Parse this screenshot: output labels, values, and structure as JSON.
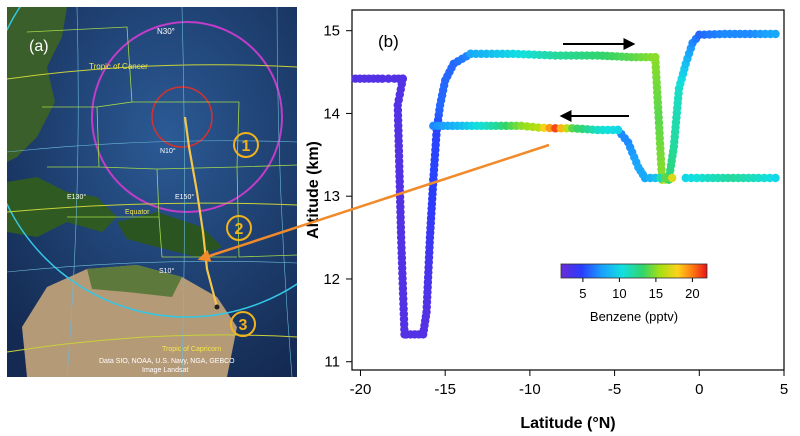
{
  "map": {
    "panel_label": "(a)",
    "labels": {
      "n30": "N30°",
      "tropic_cancer": "Tropic of Cancer",
      "n10": "N10°",
      "e130": "E130°",
      "e150": "E150°",
      "equator": "Equator",
      "s10": "S10°",
      "tropic_capricorn": "Tropic of Capricorn",
      "attribution_line1": "Data SIO, NOAA, U.S. Navy, NGA, GEBCO",
      "attribution_line2": "Image Landsat"
    },
    "markers": [
      "1",
      "2",
      "3"
    ],
    "colors": {
      "ocean": "#1f3f73",
      "land": "#2f5a22",
      "desert": "#b59a78",
      "marker": "#f2b21b",
      "circle_outer": "#32c8e6",
      "circle_mid": "#c13cc8",
      "circle_inner": "#d9302c",
      "track": "#f5c64a"
    }
  },
  "chart_data": {
    "type": "scatter",
    "panel_label": "(b)",
    "xlabel": "Latitude (°N)",
    "ylabel": "Altitude (km)",
    "xlim": [
      -20.5,
      5.0
    ],
    "ylim": [
      10.9,
      15.25
    ],
    "xticks": [
      -20,
      -15,
      -10,
      -5,
      0,
      5
    ],
    "yticks": [
      11,
      12,
      13,
      14,
      15
    ],
    "colorbar": {
      "label": "Benzene (pptv)",
      "range": [
        2,
        22
      ],
      "ticks": [
        5,
        10,
        15,
        20
      ]
    },
    "segments": [
      {
        "x": [
          -20.3,
          -19.5,
          -18.7,
          -18.0,
          -17.5
        ],
        "y": [
          14.42,
          14.42,
          14.42,
          14.42,
          14.42
        ],
        "c": [
          3,
          3,
          3,
          3,
          3
        ]
      },
      {
        "x": [
          -17.5,
          -17.8,
          -17.6,
          -17.4,
          -17.3
        ],
        "y": [
          14.42,
          14.1,
          12.5,
          11.33,
          11.33
        ],
        "c": [
          3,
          3,
          3,
          3,
          3
        ]
      },
      {
        "x": [
          -17.3,
          -16.8,
          -16.3,
          -16.1,
          -15.9,
          -15.7
        ],
        "y": [
          11.33,
          11.33,
          11.33,
          11.6,
          12.5,
          13.2
        ],
        "c": [
          3,
          3,
          3,
          3,
          4,
          5
        ]
      },
      {
        "x": [
          -15.7,
          -15.5,
          -15.3,
          -15.0,
          -14.5,
          -13.5
        ],
        "y": [
          13.2,
          13.8,
          14.1,
          14.4,
          14.6,
          14.72
        ],
        "c": [
          5,
          5,
          6,
          6,
          6,
          7
        ]
      },
      {
        "x": [
          -13.5,
          -11.0,
          -8.5,
          -6.0,
          -4.0,
          -2.6
        ],
        "y": [
          14.72,
          14.72,
          14.7,
          14.7,
          14.68,
          14.68
        ],
        "c": [
          8,
          10,
          12,
          13,
          14,
          15
        ]
      },
      {
        "x": [
          -2.6,
          -2.4,
          -2.2,
          -2.0,
          -1.8
        ],
        "y": [
          14.68,
          13.95,
          13.2,
          13.2,
          13.2
        ],
        "c": [
          15,
          14,
          15,
          16,
          16
        ]
      },
      {
        "x": [
          -1.8,
          -1.5,
          -1.2,
          -0.8,
          -0.4,
          0.0
        ],
        "y": [
          13.2,
          13.6,
          14.3,
          14.6,
          14.85,
          14.95
        ],
        "c": [
          13,
          12,
          11,
          9,
          7,
          6
        ]
      },
      {
        "x": [
          0.0,
          1.5,
          3.0,
          4.5
        ],
        "y": [
          14.95,
          14.96,
          14.96,
          14.96
        ],
        "c": [
          6,
          7,
          7,
          8
        ]
      },
      {
        "x": [
          -4.8,
          -4.2,
          -3.6,
          -3.2
        ],
        "y": [
          13.8,
          13.65,
          13.35,
          13.22
        ],
        "c": [
          7,
          7,
          8,
          8
        ]
      },
      {
        "x": [
          -3.2,
          -2.6,
          -2.0,
          -1.6
        ],
        "y": [
          13.22,
          13.22,
          13.22,
          13.22
        ],
        "c": [
          8,
          9,
          14,
          17
        ]
      },
      {
        "x": [
          -0.8,
          0.5,
          2.0,
          3.5,
          4.5
        ],
        "y": [
          13.22,
          13.22,
          13.22,
          13.22,
          13.22
        ],
        "c": [
          10,
          11,
          12,
          11,
          10
        ]
      },
      {
        "x": [
          -15.7,
          -14.0,
          -12.0,
          -10.5,
          -9.5,
          -8.5,
          -7.5,
          -6.0,
          -4.8
        ],
        "y": [
          13.85,
          13.85,
          13.85,
          13.85,
          13.83,
          13.82,
          13.82,
          13.8,
          13.8
        ],
        "c": [
          7,
          9,
          12,
          15,
          16,
          21,
          14,
          11,
          10
        ]
      }
    ],
    "arrows": [
      "right",
      "left"
    ]
  }
}
